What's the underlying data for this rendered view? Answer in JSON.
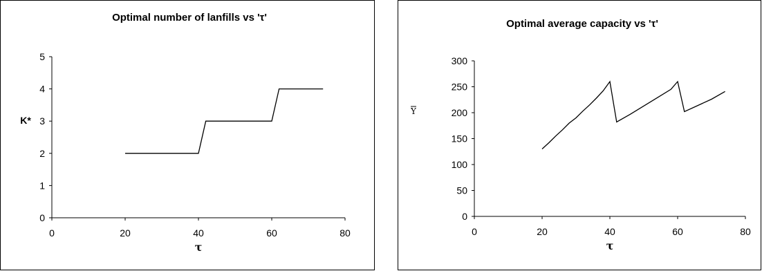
{
  "chart_data": [
    {
      "type": "line",
      "title": "Optimal number of lanfills vs 'τ'",
      "xlabel": "τ",
      "ylabel": "K*",
      "xlim": [
        0,
        80
      ],
      "ylim": [
        0,
        5
      ],
      "xticks": [
        "0",
        "20",
        "40",
        "60",
        "80"
      ],
      "yticks": [
        "0",
        "1",
        "2",
        "3",
        "4",
        "5"
      ],
      "grid": false,
      "series": [
        {
          "x": [
            20,
            40,
            42,
            60,
            62,
            74
          ],
          "y": [
            2,
            2,
            3,
            3,
            4,
            4
          ]
        }
      ]
    },
    {
      "type": "line",
      "title": "Optimal average capacity vs 'τ'",
      "xlabel": "τ",
      "ylabel": "Y",
      "xlim": [
        0,
        80
      ],
      "ylim": [
        0,
        300
      ],
      "xticks": [
        "0",
        "20",
        "40",
        "60",
        "80"
      ],
      "yticks": [
        "0",
        "50",
        "100",
        "150",
        "200",
        "250",
        "300"
      ],
      "grid": false,
      "series": [
        {
          "x": [
            20,
            22,
            24,
            26,
            28,
            30,
            32,
            34,
            36,
            38,
            40,
            42,
            46,
            50,
            54,
            58,
            60,
            62,
            66,
            70,
            74
          ],
          "y": [
            130,
            142,
            155,
            167,
            180,
            190,
            203,
            215,
            228,
            242,
            260,
            182,
            197,
            213,
            229,
            245,
            260,
            202,
            214,
            226,
            241
          ]
        }
      ]
    }
  ]
}
